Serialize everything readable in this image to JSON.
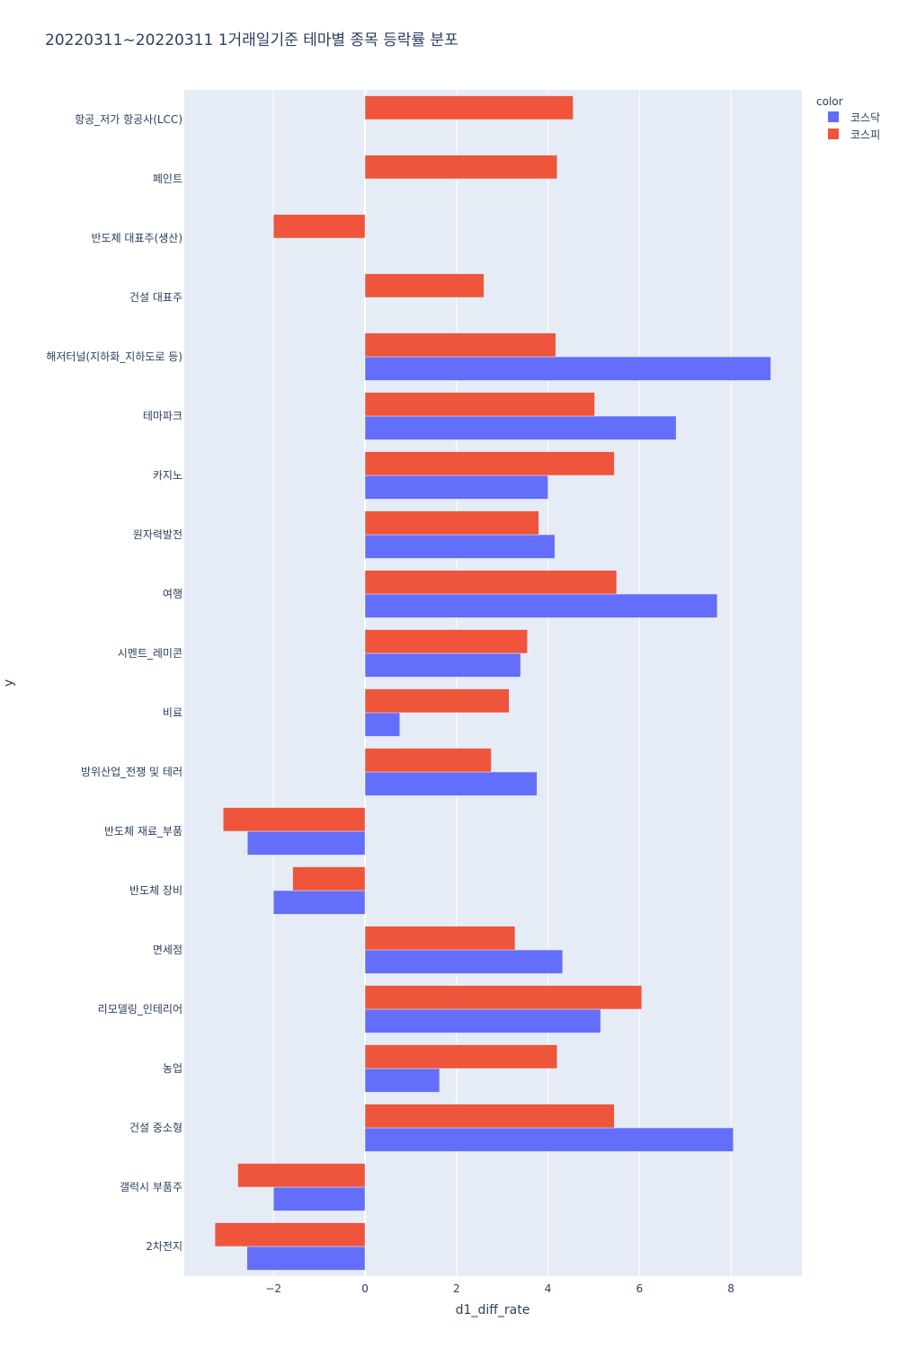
{
  "chart_data": {
    "type": "bar",
    "orientation": "horizontal",
    "title": "20220311~20220311 1거래일기준 테마별 종목 등락률 분포",
    "xlabel": "d1_diff_rate",
    "ylabel": "y",
    "xlim": [
      -3.95,
      9.55
    ],
    "xticks": [
      -2,
      0,
      2,
      4,
      6,
      8
    ],
    "xtick_labels": [
      "−2",
      "0",
      "2",
      "4",
      "6",
      "8"
    ],
    "legend_title": "color",
    "categories": [
      "항공_저가 항공사(LCC)",
      "페인트",
      "반도체 대표주(생산)",
      "건설 대표주",
      "해저터널(지하화_지하도로 등)",
      "테마파크",
      "카지노",
      "원자력발전",
      "여행",
      "시멘트_레미콘",
      "비료",
      "방위산업_전쟁 및 테러",
      "반도체 재료_부품",
      "반도체 장비",
      "면세점",
      "리모델링_인테리어",
      "농업",
      "건설 중소형",
      "갤럭시 부품주",
      "2차전지"
    ],
    "series": [
      {
        "name": "코스닥",
        "color": "#636efa",
        "values": [
          null,
          null,
          null,
          null,
          8.87,
          6.8,
          4.0,
          4.15,
          7.7,
          3.4,
          0.76,
          3.76,
          -2.57,
          -2.0,
          4.32,
          5.15,
          1.63,
          8.05,
          -2.0,
          -2.58
        ]
      },
      {
        "name": "코스피",
        "color": "#ef553b",
        "values": [
          4.55,
          4.2,
          -2.0,
          2.6,
          4.17,
          5.02,
          5.45,
          3.8,
          5.5,
          3.55,
          3.15,
          2.76,
          -3.1,
          -1.58,
          3.28,
          6.05,
          4.2,
          5.45,
          -2.78,
          -3.28
        ]
      }
    ]
  }
}
